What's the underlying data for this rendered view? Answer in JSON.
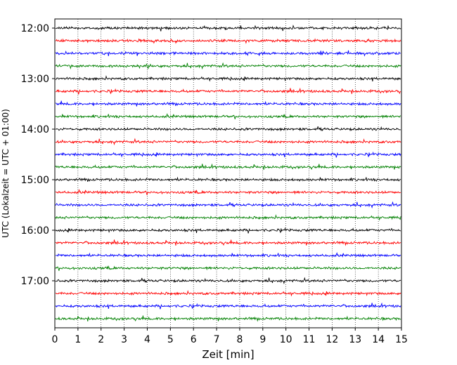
{
  "chart_data": {
    "type": "line",
    "title": "",
    "xlabel": "Zeit  [min]",
    "ylabel": "UTC (Lokalzeit = UTC + 01:00)",
    "xlim": [
      0,
      15
    ],
    "x_ticks": [
      "0",
      "1",
      "2",
      "3",
      "4",
      "5",
      "6",
      "7",
      "8",
      "9",
      "10",
      "11",
      "12",
      "13",
      "14",
      "15"
    ],
    "y_ticks": [
      "12:00",
      "13:00",
      "14:00",
      "15:00",
      "16:00",
      "17:00"
    ],
    "vertical_grid": "dotted",
    "trace_colors": [
      "#000000",
      "#ff0000",
      "#0000ff",
      "#008000"
    ],
    "traces": [
      {
        "start": "12:00",
        "end": "12:15"
      },
      {
        "start": "12:15",
        "end": "12:30"
      },
      {
        "start": "12:30",
        "end": "12:45"
      },
      {
        "start": "12:45",
        "end": "13:00"
      },
      {
        "start": "13:00",
        "end": "13:15"
      },
      {
        "start": "13:15",
        "end": "13:30"
      },
      {
        "start": "13:30",
        "end": "13:45"
      },
      {
        "start": "13:45",
        "end": "14:00"
      },
      {
        "start": "14:00",
        "end": "14:15"
      },
      {
        "start": "14:15",
        "end": "14:30"
      },
      {
        "start": "14:30",
        "end": "14:45"
      },
      {
        "start": "14:45",
        "end": "15:00"
      },
      {
        "start": "15:00",
        "end": "15:15"
      },
      {
        "start": "15:15",
        "end": "15:30"
      },
      {
        "start": "15:30",
        "end": "15:45"
      },
      {
        "start": "15:45",
        "end": "16:00"
      },
      {
        "start": "16:00",
        "end": "16:15"
      },
      {
        "start": "16:15",
        "end": "16:30"
      },
      {
        "start": "16:30",
        "end": "16:45"
      },
      {
        "start": "16:45",
        "end": "17:00"
      },
      {
        "start": "17:00",
        "end": "17:15"
      },
      {
        "start": "17:15",
        "end": "17:30"
      },
      {
        "start": "17:30",
        "end": "17:45"
      },
      {
        "start": "17:45",
        "end": "18:00"
      }
    ]
  }
}
